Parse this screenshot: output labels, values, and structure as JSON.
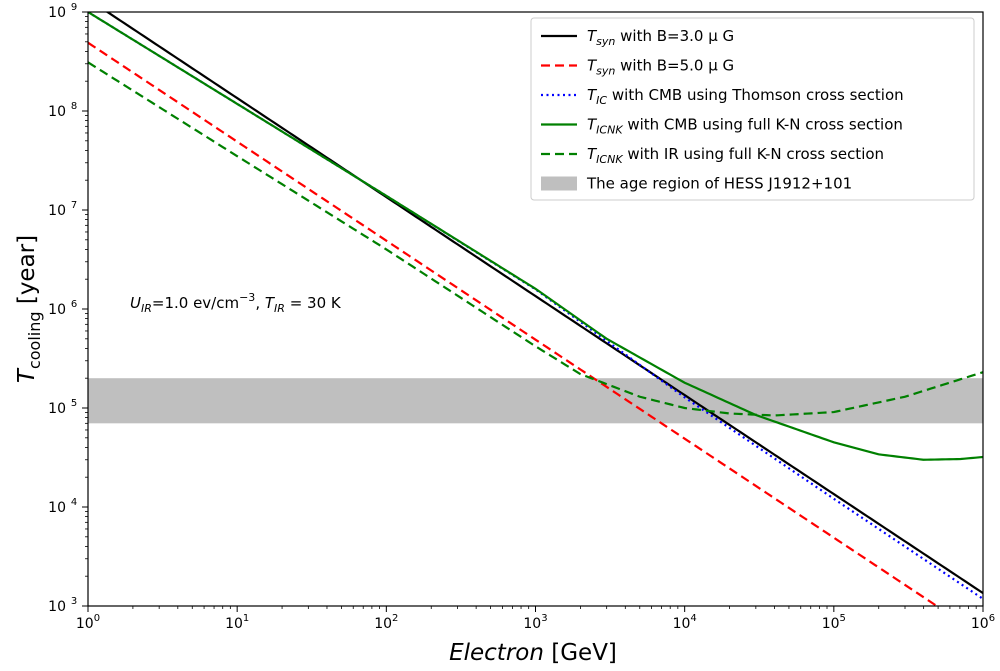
{
  "chart_data": {
    "type": "line",
    "xlabel": {
      "italic": "Electron",
      "rest": " [GeV]"
    },
    "ylabel": {
      "main": "T",
      "sub": "cooling",
      "rest": " [year]"
    },
    "x_scale": "log",
    "y_scale": "log",
    "xlim": [
      1,
      1000000
    ],
    "ylim": [
      1000,
      1000000000
    ],
    "x_ticks": [
      {
        "value": 1,
        "base": "10",
        "exp": "0"
      },
      {
        "value": 10,
        "base": "10",
        "exp": "1"
      },
      {
        "value": 100,
        "base": "10",
        "exp": "2"
      },
      {
        "value": 1000,
        "base": "10",
        "exp": "3"
      },
      {
        "value": 10000,
        "base": "10",
        "exp": "4"
      },
      {
        "value": 100000,
        "base": "10",
        "exp": "5"
      },
      {
        "value": 1000000,
        "base": "10",
        "exp": "6"
      }
    ],
    "y_ticks": [
      {
        "value": 1000,
        "base": "10",
        "exp": "3"
      },
      {
        "value": 10000,
        "base": "10",
        "exp": "4"
      },
      {
        "value": 100000,
        "base": "10",
        "exp": "5"
      },
      {
        "value": 1000000,
        "base": "10",
        "exp": "6"
      },
      {
        "value": 10000000,
        "base": "10",
        "exp": "7"
      },
      {
        "value": 100000000,
        "base": "10",
        "exp": "8"
      },
      {
        "value": 1000000000,
        "base": "10",
        "exp": "9"
      }
    ],
    "grid": false,
    "legend_position": "top-right",
    "band": {
      "y_range": [
        70000,
        200000
      ],
      "color": "#bfbfbf",
      "label": "The age region of HESS J1912+101"
    },
    "series": [
      {
        "legend_main": "T",
        "legend_sub": "syn",
        "legend_rest": " with B=3.0 μ G",
        "color": "#000000",
        "dash": "solid",
        "x": [
          1,
          10,
          100,
          1000,
          10000,
          100000,
          1000000
        ],
        "y": [
          1350000000,
          135000000,
          13500000,
          1350000,
          135000,
          13500,
          1350
        ]
      },
      {
        "legend_main": "T",
        "legend_sub": "syn",
        "legend_rest": " with B=5.0 μ G",
        "color": "#ff0000",
        "dash": "dashed",
        "x": [
          1,
          10,
          100,
          1000,
          10000,
          100000,
          1000000
        ],
        "y": [
          490000000,
          49000000,
          4900000,
          490000,
          49000,
          4900,
          490
        ]
      },
      {
        "legend_main": "T",
        "legend_sub": "IC",
        "legend_rest": " with CMB using Thomson cross section",
        "color": "#0000ff",
        "dash": "dotted",
        "x": [
          1,
          10,
          100,
          1000,
          10000,
          100000,
          1000000
        ],
        "y": [
          1000000000,
          118000000,
          13900000,
          1580000,
          128000,
          12100,
          1180
        ]
      },
      {
        "legend_main": "T",
        "legend_sub": "ICNK",
        "legend_rest": " with CMB using full K-N cross section",
        "color": "#008000",
        "dash": "solid",
        "x": [
          1,
          10,
          100,
          1000,
          3000,
          10000,
          30000,
          100000,
          200000,
          400000,
          700000,
          1000000
        ],
        "y": [
          1000000000,
          118000000,
          13900000,
          1600000,
          500000,
          180000,
          85000,
          45000,
          34000,
          30000,
          30500,
          32000
        ]
      },
      {
        "legend_main": "T",
        "legend_sub": "ICNK",
        "legend_rest": " with IR using full K-N cross section",
        "color": "#008000",
        "dash": "dashed",
        "x": [
          1,
          10,
          100,
          1000,
          2000,
          5000,
          10000,
          20000,
          40000,
          100000,
          300000,
          1000000
        ],
        "y": [
          310000000,
          35000000,
          4000000,
          420000,
          220000,
          130000,
          100000,
          88000,
          84000,
          91000,
          130000,
          230000
        ]
      }
    ],
    "annotation": {
      "u_main": "U",
      "u_sub": "IR",
      "u_rest": "=1.0 ev/cm",
      "u_sup": "−3",
      "sep": ", ",
      "t_main": "T",
      "t_sub": "IR",
      "t_rest": " = 30 K"
    }
  }
}
